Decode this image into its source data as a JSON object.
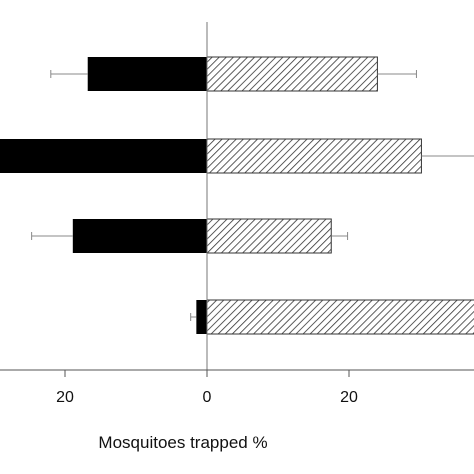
{
  "chart_data": {
    "type": "bar",
    "orientation": "horizontal",
    "diverging": true,
    "xlabel": "Mosquitoes trapped %",
    "ylabel": "",
    "xlim": [
      -29,
      38
    ],
    "x_ticks": [
      -20,
      0,
      20
    ],
    "x_tick_labels": [
      "20",
      "0",
      "20"
    ],
    "grid": false,
    "legend": "none",
    "colors": {
      "left": "#000000",
      "right_fill": "#ffffff",
      "right_hatch": "#333333",
      "axis": "#777777",
      "error": "#888888"
    },
    "series": [
      {
        "side": "left",
        "style": "solid",
        "values": [
          16.8,
          30,
          18.9,
          1.5
        ],
        "errors": [
          5.2,
          0,
          5.8,
          0.8
        ]
      },
      {
        "side": "right",
        "style": "hatched",
        "values": [
          24,
          30.2,
          17.5,
          38
        ],
        "errors": [
          5.5,
          7.5,
          2.3,
          0
        ]
      }
    ]
  }
}
